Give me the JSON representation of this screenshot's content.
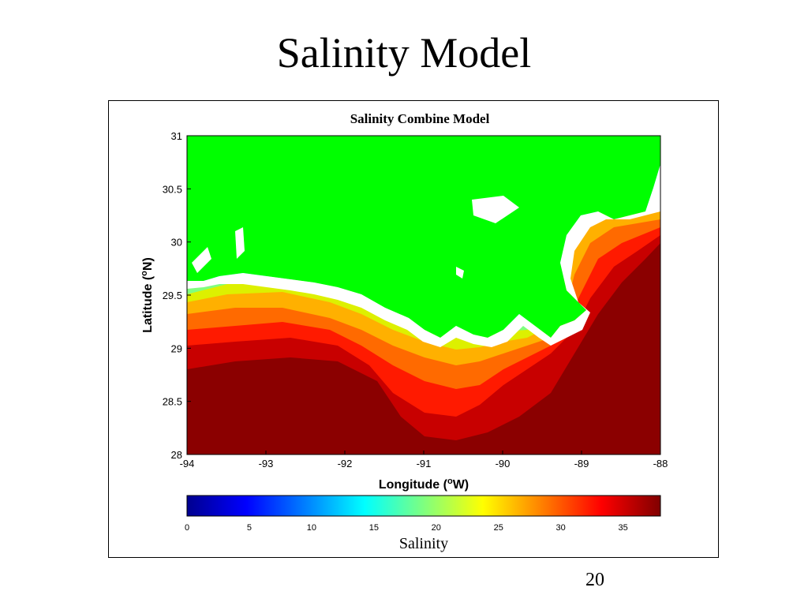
{
  "slide": {
    "title": "Salinity Model",
    "page_number": "20"
  },
  "chart_data": {
    "type": "heatmap",
    "title": "Salinity Combine Model",
    "xlabel_main": "Longitude (",
    "xlabel_sup": "o",
    "xlabel_end": "W)",
    "ylabel_main": "Latitude (",
    "ylabel_sup": "o",
    "ylabel_end": "N)",
    "x_ticks": [
      "-94",
      "-93",
      "-92",
      "-91",
      "-90",
      "-89",
      "-88"
    ],
    "y_ticks": [
      "28",
      "28.5",
      "29",
      "29.5",
      "30",
      "30.5",
      "31"
    ],
    "xlim": [
      -94,
      -88
    ],
    "ylim": [
      28,
      31
    ],
    "land_color": "#00FF00",
    "colormap": "jet",
    "colorbar": {
      "label": "Salinity",
      "ticks": [
        "0",
        "5",
        "10",
        "15",
        "20",
        "25",
        "30",
        "35"
      ],
      "range": [
        0,
        38
      ]
    },
    "salinity_bands": [
      {
        "lat_offshore": 28.0,
        "salinity": 38
      },
      {
        "lat_offshore": 28.8,
        "salinity": 35
      },
      {
        "lat_offshore": 29.0,
        "salinity": 32
      },
      {
        "lat_offshore": 29.2,
        "salinity": 28
      },
      {
        "lat_offshore": 29.35,
        "salinity": 24
      },
      {
        "lat_offshore": 29.5,
        "salinity": 18
      },
      {
        "lat_offshore": 29.6,
        "salinity": 12
      }
    ]
  }
}
